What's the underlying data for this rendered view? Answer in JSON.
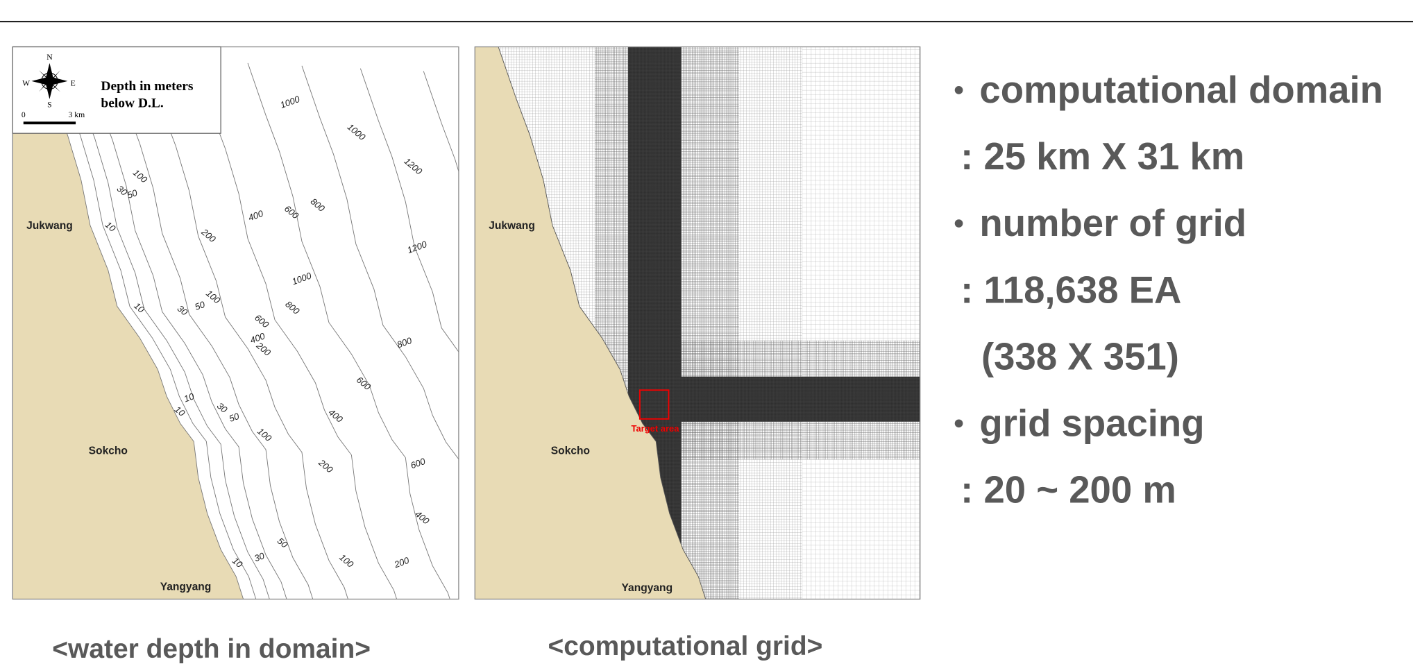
{
  "depth_map": {
    "legend": {
      "compass": [
        "N",
        "S",
        "W",
        "E"
      ],
      "title": [
        "Depth in meters",
        "below D.L."
      ],
      "scale": [
        "0",
        "3 km"
      ]
    },
    "places": [
      "Jukwang",
      "Sokcho",
      "Yangyang"
    ],
    "contour_labels": [
      "1000",
      "1000",
      "1200",
      "1200",
      "800",
      "600",
      "400",
      "200",
      "100",
      "50",
      "30",
      "10",
      "1000",
      "800",
      "600",
      "400",
      "200",
      "100",
      "50",
      "30",
      "10",
      "800",
      "600",
      "400",
      "10",
      "10",
      "30",
      "50",
      "100",
      "200",
      "600",
      "400",
      "50",
      "30",
      "10",
      "100",
      "200"
    ]
  },
  "grid_map": {
    "places": [
      "Jukwang",
      "Sokcho",
      "Yangyang"
    ],
    "target": "Target area"
  },
  "bullets": [
    {
      "title": "computational domain",
      "lines": [
        ": 25 km X 31 km"
      ]
    },
    {
      "title": "number of grid",
      "lines": [
        ": 118,638 EA",
        "(338 X 351)"
      ]
    },
    {
      "title": "grid spacing",
      "lines": [
        ": 20 ~ 200 m"
      ]
    }
  ],
  "captions": [
    "<water depth in domain>",
    "<computational grid>"
  ]
}
